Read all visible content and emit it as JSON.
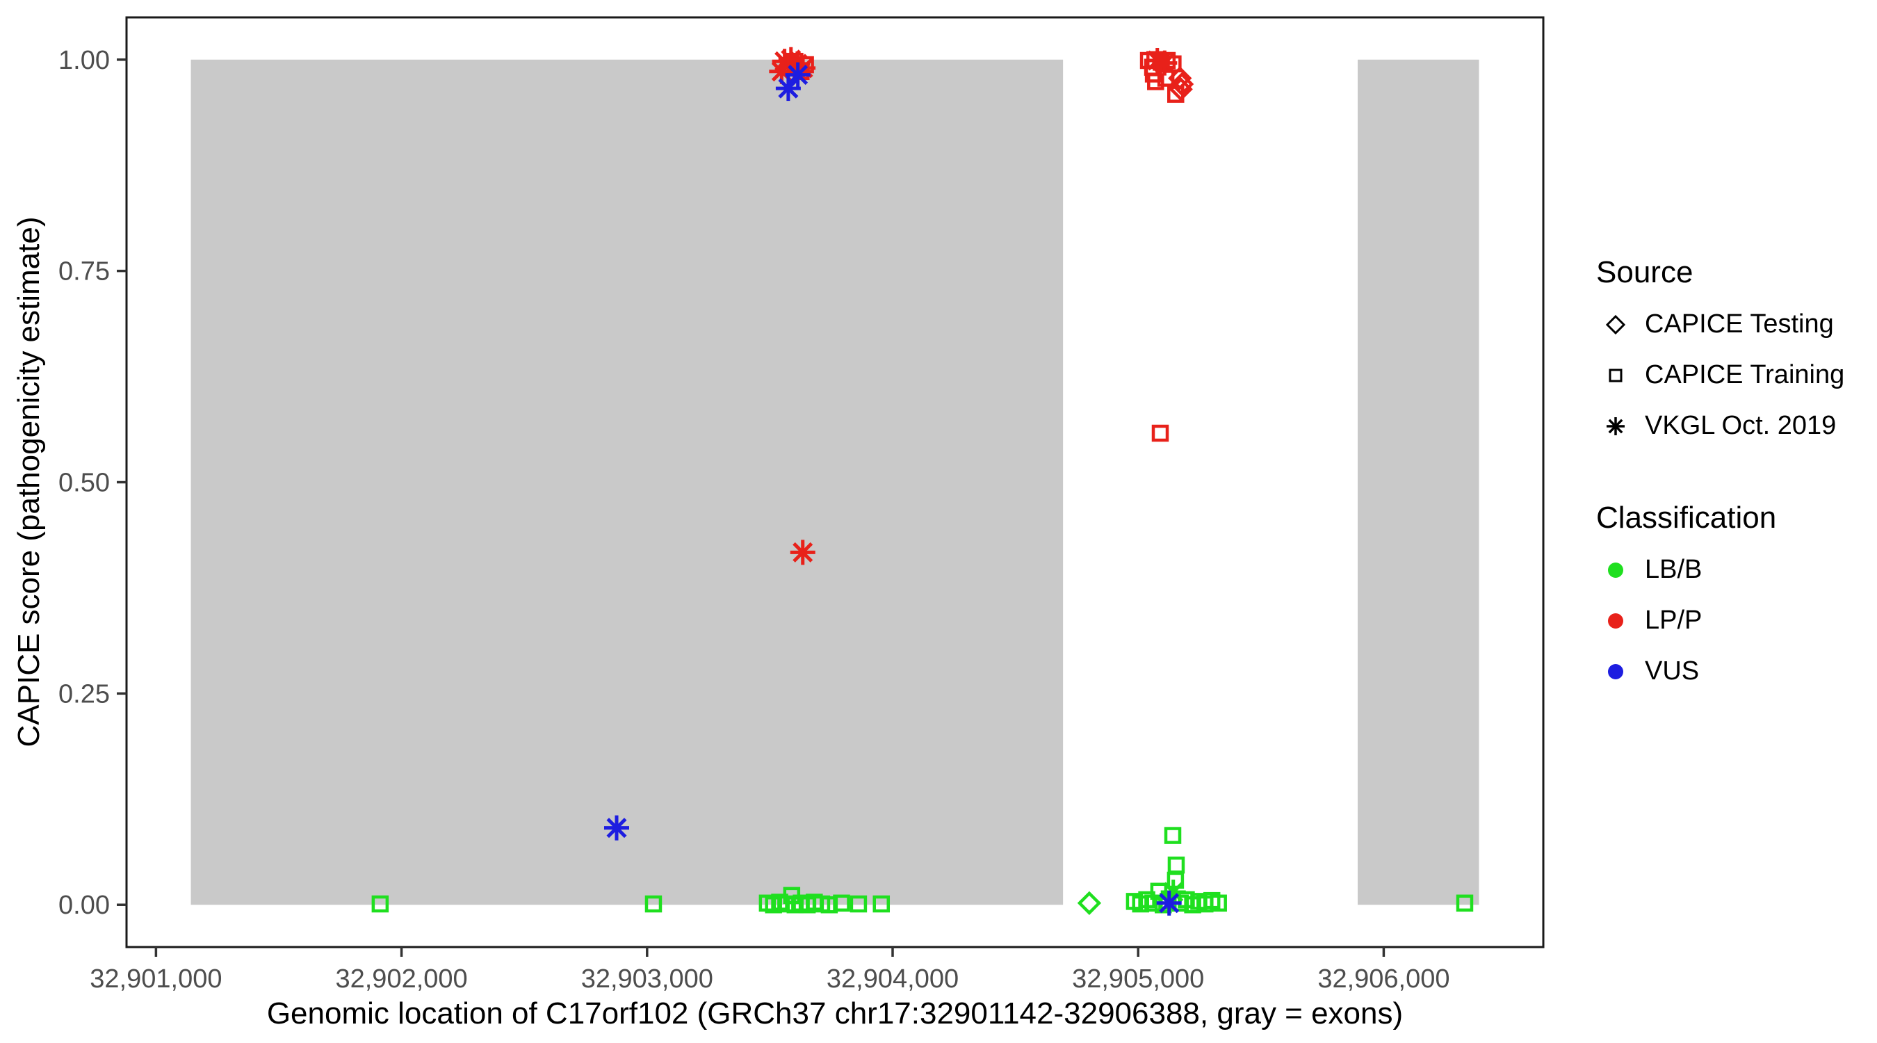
{
  "chart_data": {
    "type": "scatter",
    "title": "",
    "xlabel": "Genomic location of C17orf102 (GRCh37 chr17:32901142-32906388, gray = exons)",
    "ylabel": "CAPICE score (pathogenicity estimate)",
    "x_range": [
      32900880,
      32906650
    ],
    "y_range": [
      -0.05,
      1.05
    ],
    "x_ticks": [
      {
        "value": 32901000,
        "label": "32,901,000"
      },
      {
        "value": 32902000,
        "label": "32,902,000"
      },
      {
        "value": 32903000,
        "label": "32,903,000"
      },
      {
        "value": 32904000,
        "label": "32,904,000"
      },
      {
        "value": 32905000,
        "label": "32,905,000"
      },
      {
        "value": 32906000,
        "label": "32,906,000"
      }
    ],
    "y_ticks": [
      {
        "value": 0.0,
        "label": "0.00"
      },
      {
        "value": 0.25,
        "label": "0.25"
      },
      {
        "value": 0.5,
        "label": "0.50"
      },
      {
        "value": 0.75,
        "label": "0.75"
      },
      {
        "value": 1.0,
        "label": "1.00"
      }
    ],
    "exon_color": "#C9C9C9",
    "exons": [
      {
        "start": 32901142,
        "end": 32904694
      },
      {
        "start": 32905894,
        "end": 32906388
      }
    ],
    "legend": {
      "source_title": "Source",
      "source_items": [
        {
          "label": "CAPICE Testing",
          "shape": "diamond"
        },
        {
          "label": "CAPICE Training",
          "shape": "square"
        },
        {
          "label": "VKGL Oct. 2019",
          "shape": "asterisk"
        }
      ],
      "classification_title": "Classification",
      "classification_items": [
        {
          "label": "LB/B",
          "color": "#1FDF1F"
        },
        {
          "label": "LP/P",
          "color": "#E8211A"
        },
        {
          "label": "VUS",
          "color": "#1D1DE0"
        }
      ]
    },
    "shape_by_source": {
      "testing": "diamond",
      "training": "square",
      "vkgl": "asterisk"
    },
    "points": [
      {
        "pos": 32903560,
        "score": 0.998,
        "source": "vkgl",
        "cls": "LP/P"
      },
      {
        "pos": 32903586,
        "score": 1.0,
        "source": "vkgl",
        "cls": "LP/P"
      },
      {
        "pos": 32903612,
        "score": 0.995,
        "source": "vkgl",
        "cls": "LP/P"
      },
      {
        "pos": 32903548,
        "score": 0.986,
        "source": "vkgl",
        "cls": "LP/P"
      },
      {
        "pos": 32903635,
        "score": 0.99,
        "source": "vkgl",
        "cls": "LP/P"
      },
      {
        "pos": 32903575,
        "score": 0.993,
        "source": "training",
        "cls": "LP/P"
      },
      {
        "pos": 32903602,
        "score": 0.998,
        "source": "training",
        "cls": "LP/P"
      },
      {
        "pos": 32903627,
        "score": 0.986,
        "source": "training",
        "cls": "LP/P"
      },
      {
        "pos": 32903645,
        "score": 0.994,
        "source": "training",
        "cls": "LP/P"
      },
      {
        "pos": 32903614,
        "score": 0.982,
        "source": "vkgl",
        "cls": "VUS"
      },
      {
        "pos": 32903575,
        "score": 0.966,
        "source": "vkgl",
        "cls": "VUS"
      },
      {
        "pos": 32903634,
        "score": 0.417,
        "source": "vkgl",
        "cls": "LP/P"
      },
      {
        "pos": 32902876,
        "score": 0.091,
        "source": "vkgl",
        "cls": "VUS"
      },
      {
        "pos": 32905042,
        "score": 0.999,
        "source": "training",
        "cls": "LP/P"
      },
      {
        "pos": 32905068,
        "score": 1.0,
        "source": "training",
        "cls": "LP/P"
      },
      {
        "pos": 32905094,
        "score": 0.997,
        "source": "training",
        "cls": "LP/P"
      },
      {
        "pos": 32905118,
        "score": 0.999,
        "source": "training",
        "cls": "LP/P"
      },
      {
        "pos": 32905142,
        "score": 0.995,
        "source": "training",
        "cls": "LP/P"
      },
      {
        "pos": 32905059,
        "score": 0.991,
        "source": "training",
        "cls": "LP/P"
      },
      {
        "pos": 32905062,
        "score": 0.983,
        "source": "training",
        "cls": "LP/P"
      },
      {
        "pos": 32905071,
        "score": 0.974,
        "source": "training",
        "cls": "LP/P"
      },
      {
        "pos": 32905113,
        "score": 0.978,
        "source": "training",
        "cls": "LP/P"
      },
      {
        "pos": 32905153,
        "score": 0.959,
        "source": "training",
        "cls": "LP/P"
      },
      {
        "pos": 32905078,
        "score": 0.999,
        "source": "vkgl",
        "cls": "LP/P"
      },
      {
        "pos": 32905108,
        "score": 0.996,
        "source": "vkgl",
        "cls": "LP/P"
      },
      {
        "pos": 32905170,
        "score": 0.978,
        "source": "testing",
        "cls": "LP/P"
      },
      {
        "pos": 32905178,
        "score": 0.971,
        "source": "testing",
        "cls": "LP/P"
      },
      {
        "pos": 32905174,
        "score": 0.965,
        "source": "testing",
        "cls": "LP/P"
      },
      {
        "pos": 32905090,
        "score": 0.558,
        "source": "training",
        "cls": "LP/P"
      },
      {
        "pos": 32901913,
        "score": 0.001,
        "source": "training",
        "cls": "LB/B"
      },
      {
        "pos": 32903026,
        "score": 0.001,
        "source": "training",
        "cls": "LB/B"
      },
      {
        "pos": 32903490,
        "score": 0.002,
        "source": "training",
        "cls": "LB/B"
      },
      {
        "pos": 32903515,
        "score": 0.0,
        "source": "training",
        "cls": "LB/B"
      },
      {
        "pos": 32903540,
        "score": 0.003,
        "source": "training",
        "cls": "LB/B"
      },
      {
        "pos": 32903565,
        "score": 0.001,
        "source": "training",
        "cls": "LB/B"
      },
      {
        "pos": 32903589,
        "score": 0.011,
        "source": "training",
        "cls": "LB/B"
      },
      {
        "pos": 32903603,
        "score": 0.0,
        "source": "training",
        "cls": "LB/B"
      },
      {
        "pos": 32903628,
        "score": 0.002,
        "source": "training",
        "cls": "LB/B"
      },
      {
        "pos": 32903652,
        "score": 0.0,
        "source": "training",
        "cls": "LB/B"
      },
      {
        "pos": 32903681,
        "score": 0.003,
        "source": "training",
        "cls": "LB/B"
      },
      {
        "pos": 32903711,
        "score": 0.001,
        "source": "training",
        "cls": "LB/B"
      },
      {
        "pos": 32903742,
        "score": 0.0,
        "source": "training",
        "cls": "LB/B"
      },
      {
        "pos": 32903792,
        "score": 0.002,
        "source": "training",
        "cls": "LB/B"
      },
      {
        "pos": 32903861,
        "score": 0.001,
        "source": "training",
        "cls": "LB/B"
      },
      {
        "pos": 32903954,
        "score": 0.001,
        "source": "training",
        "cls": "LB/B"
      },
      {
        "pos": 32904801,
        "score": 0.002,
        "source": "testing",
        "cls": "LB/B"
      },
      {
        "pos": 32904985,
        "score": 0.004,
        "source": "training",
        "cls": "LB/B"
      },
      {
        "pos": 32905010,
        "score": 0.001,
        "source": "training",
        "cls": "LB/B"
      },
      {
        "pos": 32905035,
        "score": 0.006,
        "source": "training",
        "cls": "LB/B"
      },
      {
        "pos": 32905060,
        "score": 0.002,
        "source": "training",
        "cls": "LB/B"
      },
      {
        "pos": 32905084,
        "score": 0.016,
        "source": "training",
        "cls": "LB/B"
      },
      {
        "pos": 32905102,
        "score": 0.0,
        "source": "training",
        "cls": "LB/B"
      },
      {
        "pos": 32905122,
        "score": 0.004,
        "source": "training",
        "cls": "LB/B"
      },
      {
        "pos": 32905152,
        "score": 0.029,
        "source": "training",
        "cls": "LB/B"
      },
      {
        "pos": 32905172,
        "score": 0.002,
        "source": "training",
        "cls": "LB/B"
      },
      {
        "pos": 32905196,
        "score": 0.006,
        "source": "training",
        "cls": "LB/B"
      },
      {
        "pos": 32905222,
        "score": 0.0,
        "source": "training",
        "cls": "LB/B"
      },
      {
        "pos": 32905247,
        "score": 0.004,
        "source": "training",
        "cls": "LB/B"
      },
      {
        "pos": 32905272,
        "score": 0.001,
        "source": "training",
        "cls": "LB/B"
      },
      {
        "pos": 32905300,
        "score": 0.005,
        "source": "training",
        "cls": "LB/B"
      },
      {
        "pos": 32905327,
        "score": 0.002,
        "source": "training",
        "cls": "LB/B"
      },
      {
        "pos": 32905141,
        "score": 0.082,
        "source": "training",
        "cls": "LB/B"
      },
      {
        "pos": 32905155,
        "score": 0.047,
        "source": "training",
        "cls": "LB/B"
      },
      {
        "pos": 32905143,
        "score": 0.015,
        "source": "vkgl",
        "cls": "LB/B"
      },
      {
        "pos": 32905126,
        "score": 0.002,
        "source": "vkgl",
        "cls": "VUS"
      },
      {
        "pos": 32906330,
        "score": 0.002,
        "source": "training",
        "cls": "LB/B"
      }
    ]
  }
}
